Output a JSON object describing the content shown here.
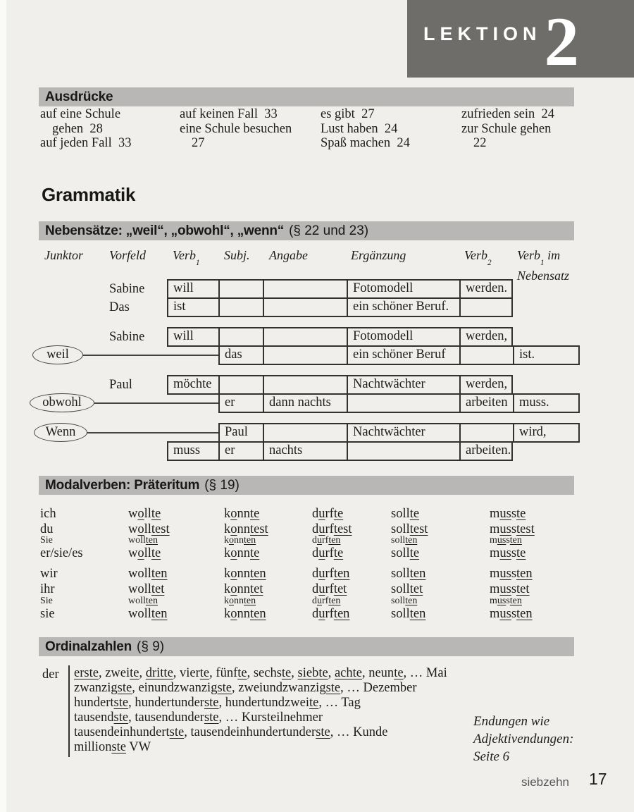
{
  "colors": {
    "page_bg": "#f0efec",
    "bar_gray": "#b8b7b5",
    "banner_gray": "#6e6d6a",
    "text": "#1e1d1b",
    "footer_gray": "#57575a"
  },
  "banner": {
    "label": "LEKTION",
    "number": "2"
  },
  "ausdruecke": {
    "title": "Ausdrücke",
    "columns": [
      [
        "auf eine Schule",
        "gehen  28",
        "auf jeden Fall  33"
      ],
      [
        "auf keinen Fall  33",
        "eine Schule besuchen",
        "27"
      ],
      [
        "es gibt  27",
        "Lust haben  24",
        "Spaß machen  24"
      ],
      [
        "zufrieden sein  24",
        "zur Schule gehen",
        "22"
      ]
    ]
  },
  "grammatik_title": "Grammatik",
  "nebensaetze": {
    "title_bold": "Nebensätze: „weil“, „obwohl“, „wenn“",
    "title_ref": "(§ 22 und 23)",
    "headers": {
      "junktor": "Junktor",
      "vorfeld": "Vorfeld",
      "verb1": {
        "base": "Verb",
        "sub": "1"
      },
      "subj": "Subj.",
      "angabe": "Angabe",
      "ergaenzung": "Ergänzung",
      "verb2": {
        "base": "Verb",
        "sub": "2"
      },
      "verb1nb": {
        "base": "Verb",
        "sub": "1",
        "rest": " im",
        "line2": "Nebensatz"
      }
    },
    "rows": [
      {
        "vorfeld": "Sabine",
        "cells": [
          "will",
          "",
          "",
          "Fotomodell",
          "werden."
        ]
      },
      {
        "vorfeld": "Das",
        "cells": [
          "ist",
          "",
          "",
          "ein schöner Beruf.",
          ""
        ]
      },
      {
        "vorfeld": "Sabine",
        "cells": [
          "will",
          "",
          "",
          "Fotomodell",
          "werden,"
        ]
      },
      {
        "junktor": "weil",
        "cells": [
          "das",
          "",
          "ein schöner Beruf",
          "",
          "ist."
        ]
      },
      {
        "vorfeld": "Paul",
        "cells": [
          "möchte",
          "",
          "",
          "Nachtwächter",
          "werden,"
        ]
      },
      {
        "junktor": "obwohl",
        "cells": [
          "er",
          "dann nachts",
          "",
          "arbeiten",
          "muss."
        ]
      },
      {
        "junktor": "Wenn",
        "cells": [
          "Paul",
          "",
          "Nachtwächter",
          "",
          "wird,"
        ]
      },
      {
        "cells": [
          "muss",
          "er",
          "nachts",
          "",
          "arbeiten."
        ]
      }
    ]
  },
  "modalverben": {
    "title_bold": "Modalverben: Präteritum",
    "title_ref": "(§ 19)",
    "rows": [
      {
        "pronoun": "ich",
        "forms": [
          [
            {
              "t": "w"
            },
            {
              "t": "o",
              "u": true
            },
            {
              "t": "ll"
            },
            {
              "t": "te",
              "u": true
            }
          ],
          [
            {
              "t": "k"
            },
            {
              "t": "o",
              "u": true
            },
            {
              "t": "nn"
            },
            {
              "t": "te",
              "u": true
            }
          ],
          [
            {
              "t": "d"
            },
            {
              "t": "u",
              "u": true
            },
            {
              "t": "rf"
            },
            {
              "t": "te",
              "u": true
            }
          ],
          [
            {
              "t": "soll"
            },
            {
              "t": "te",
              "u": true
            }
          ],
          [
            {
              "t": "m"
            },
            {
              "t": "us",
              "u": true
            },
            {
              "t": "s"
            },
            {
              "t": "te",
              "u": true
            }
          ]
        ]
      },
      {
        "pronoun": "du",
        "forms": [
          [
            {
              "t": "w"
            },
            {
              "t": "o",
              "u": true
            },
            {
              "t": "ll"
            },
            {
              "t": "test",
              "u": true
            }
          ],
          [
            {
              "t": "k"
            },
            {
              "t": "o",
              "u": true
            },
            {
              "t": "nn"
            },
            {
              "t": "test",
              "u": true
            }
          ],
          [
            {
              "t": "d"
            },
            {
              "t": "u",
              "u": true
            },
            {
              "t": "rf"
            },
            {
              "t": "test",
              "u": true
            }
          ],
          [
            {
              "t": "soll"
            },
            {
              "t": "test",
              "u": true
            }
          ],
          [
            {
              "t": "m"
            },
            {
              "t": "us",
              "u": true
            },
            {
              "t": "s"
            },
            {
              "t": "test",
              "u": true
            }
          ]
        ]
      },
      {
        "pronoun": "Sie",
        "forms": [
          [
            {
              "t": "woll"
            },
            {
              "t": "ten",
              "u": true
            }
          ],
          [
            {
              "t": "k"
            },
            {
              "t": "o",
              "u": true
            },
            {
              "t": "nn"
            },
            {
              "t": "ten",
              "u": true
            }
          ],
          [
            {
              "t": "d"
            },
            {
              "t": "u",
              "u": true
            },
            {
              "t": "rf"
            },
            {
              "t": "ten",
              "u": true
            }
          ],
          [
            {
              "t": "soll"
            },
            {
              "t": "ten",
              "u": true
            }
          ],
          [
            {
              "t": "m"
            },
            {
              "t": "us",
              "u": true
            },
            {
              "t": "s"
            },
            {
              "t": "ten",
              "u": true
            }
          ]
        ]
      },
      {
        "pronoun": "er/sie/es",
        "forms": [
          [
            {
              "t": "w"
            },
            {
              "t": "o",
              "u": true
            },
            {
              "t": "ll"
            },
            {
              "t": "te",
              "u": true
            }
          ],
          [
            {
              "t": "k"
            },
            {
              "t": "o",
              "u": true
            },
            {
              "t": "nn"
            },
            {
              "t": "te",
              "u": true
            }
          ],
          [
            {
              "t": "d"
            },
            {
              "t": "u",
              "u": true
            },
            {
              "t": "rf"
            },
            {
              "t": "te",
              "u": true
            }
          ],
          [
            {
              "t": "soll"
            },
            {
              "t": "te",
              "u": true
            }
          ],
          [
            {
              "t": "m"
            },
            {
              "t": "us",
              "u": true
            },
            {
              "t": "s"
            },
            {
              "t": "te",
              "u": true
            }
          ]
        ]
      },
      {
        "pronoun": "wir",
        "forms": [
          [
            {
              "t": "woll"
            },
            {
              "t": "ten",
              "u": true
            }
          ],
          [
            {
              "t": "k"
            },
            {
              "t": "o",
              "u": true
            },
            {
              "t": "nn"
            },
            {
              "t": "ten",
              "u": true
            }
          ],
          [
            {
              "t": "d"
            },
            {
              "t": "u",
              "u": true
            },
            {
              "t": "rf"
            },
            {
              "t": "ten",
              "u": true
            }
          ],
          [
            {
              "t": "soll"
            },
            {
              "t": "ten",
              "u": true
            }
          ],
          [
            {
              "t": "m"
            },
            {
              "t": "us",
              "u": true
            },
            {
              "t": "s"
            },
            {
              "t": "ten",
              "u": true
            }
          ]
        ]
      },
      {
        "pronoun": "ihr",
        "forms": [
          [
            {
              "t": "woll"
            },
            {
              "t": "tet",
              "u": true
            }
          ],
          [
            {
              "t": "k"
            },
            {
              "t": "o",
              "u": true
            },
            {
              "t": "nn"
            },
            {
              "t": "tet",
              "u": true
            }
          ],
          [
            {
              "t": "d"
            },
            {
              "t": "u",
              "u": true
            },
            {
              "t": "rf"
            },
            {
              "t": "tet",
              "u": true
            }
          ],
          [
            {
              "t": "soll"
            },
            {
              "t": "tet",
              "u": true
            }
          ],
          [
            {
              "t": "m"
            },
            {
              "t": "us",
              "u": true
            },
            {
              "t": "s"
            },
            {
              "t": "tet",
              "u": true
            }
          ]
        ]
      },
      {
        "pronoun": "Sie",
        "forms": [
          [
            {
              "t": "woll"
            },
            {
              "t": "ten",
              "u": true
            }
          ],
          [
            {
              "t": "k"
            },
            {
              "t": "o",
              "u": true
            },
            {
              "t": "nn"
            },
            {
              "t": "ten",
              "u": true
            }
          ],
          [
            {
              "t": "d"
            },
            {
              "t": "u",
              "u": true
            },
            {
              "t": "rf"
            },
            {
              "t": "ten",
              "u": true
            }
          ],
          [
            {
              "t": "soll"
            },
            {
              "t": "ten",
              "u": true
            }
          ],
          [
            {
              "t": "m"
            },
            {
              "t": "us",
              "u": true
            },
            {
              "t": "s"
            },
            {
              "t": "ten",
              "u": true
            }
          ]
        ]
      },
      {
        "pronoun": "sie",
        "forms": [
          [
            {
              "t": "woll"
            },
            {
              "t": "ten",
              "u": true
            }
          ],
          [
            {
              "t": "k"
            },
            {
              "t": "o",
              "u": true
            },
            {
              "t": "nn"
            },
            {
              "t": "ten",
              "u": true
            }
          ],
          [
            {
              "t": "d"
            },
            {
              "t": "u",
              "u": true
            },
            {
              "t": "rf"
            },
            {
              "t": "ten",
              "u": true
            }
          ],
          [
            {
              "t": "soll"
            },
            {
              "t": "ten",
              "u": true
            }
          ],
          [
            {
              "t": "m"
            },
            {
              "t": "us",
              "u": true
            },
            {
              "t": "s"
            },
            {
              "t": "ten",
              "u": true
            }
          ]
        ]
      }
    ]
  },
  "ordinalzahlen": {
    "title_bold": "Ordinalzahlen",
    "title_ref": "(§ 9)",
    "article": "der",
    "lines": [
      [
        {
          "t": "erste",
          "u": true
        },
        {
          "t": ", zwei"
        },
        {
          "t": "te",
          "u": true
        },
        {
          "t": ", "
        },
        {
          "t": "dritte",
          "u": true
        },
        {
          "t": ", vier"
        },
        {
          "t": "te",
          "u": true
        },
        {
          "t": ", fünf"
        },
        {
          "t": "te",
          "u": true
        },
        {
          "t": ", sechs"
        },
        {
          "t": "te",
          "u": true
        },
        {
          "t": ", "
        },
        {
          "t": "siebte",
          "u": true
        },
        {
          "t": ", "
        },
        {
          "t": "achte",
          "u": true
        },
        {
          "t": ", neun"
        },
        {
          "t": "te",
          "u": true
        },
        {
          "t": ", … Mai"
        }
      ],
      [
        {
          "t": "zwanzig"
        },
        {
          "t": "ste",
          "u": true
        },
        {
          "t": ", einundzwanzig"
        },
        {
          "t": "ste",
          "u": true
        },
        {
          "t": ", zweiundzwanzig"
        },
        {
          "t": "ste",
          "u": true
        },
        {
          "t": ", … Dezember"
        }
      ],
      [
        {
          "t": "hundert"
        },
        {
          "t": "ste",
          "u": true
        },
        {
          "t": ", hundertunder"
        },
        {
          "t": "ste",
          "u": true
        },
        {
          "t": ", hundertundzwei"
        },
        {
          "t": "te",
          "u": true
        },
        {
          "t": ", … Tag"
        }
      ],
      [
        {
          "t": "tausend"
        },
        {
          "t": "ste",
          "u": true
        },
        {
          "t": ", tausendunder"
        },
        {
          "t": "ste",
          "u": true
        },
        {
          "t": ", … Kursteilnehmer"
        }
      ],
      [
        {
          "t": "tausendeinhundert"
        },
        {
          "t": "ste",
          "u": true
        },
        {
          "t": ", tausendeinhundertunder"
        },
        {
          "t": "ste",
          "u": true
        },
        {
          "t": ", … Kunde"
        }
      ],
      [
        {
          "t": "million"
        },
        {
          "t": "ste",
          "u": true
        },
        {
          "t": " VW"
        }
      ]
    ],
    "note_lines": [
      "Endungen wie",
      "Adjektivendungen:",
      "Seite 6"
    ]
  },
  "footer": {
    "page_word": "siebzehn",
    "page_number": "17"
  }
}
